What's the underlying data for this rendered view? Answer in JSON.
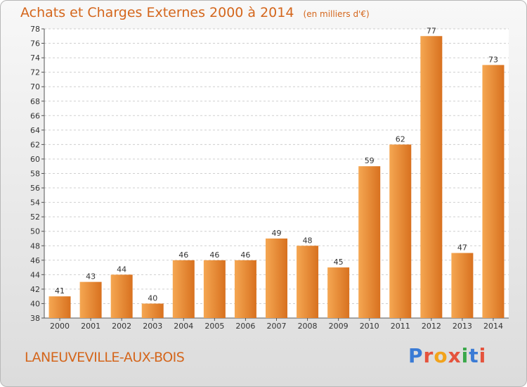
{
  "header": {
    "title": "Achats et Charges Externes 2000 à 2014",
    "subtitle": "(en milliers d'€)"
  },
  "footer": {
    "location": "LANEUVEVILLE-AUX-BOIS",
    "brand": "Proxiti",
    "brand_colors": [
      "#3a7bd5",
      "#e5533d",
      "#f2a31b",
      "#e5533d",
      "#3aa84a",
      "#3a7bd5",
      "#e5533d"
    ]
  },
  "colors": {
    "bar_light": "#f5a752",
    "bar_dark": "#d8711f",
    "grid": "#cfcfcf",
    "plot_bg": "#ffffff",
    "title": "#d4661c"
  },
  "chart_data": {
    "type": "bar",
    "title": "Achats et Charges Externes 2000 à 2014",
    "subtitle": "(en milliers d'€)",
    "xlabel": "",
    "ylabel": "",
    "categories": [
      "2000",
      "2001",
      "2002",
      "2003",
      "2004",
      "2005",
      "2006",
      "2007",
      "2008",
      "2009",
      "2010",
      "2011",
      "2012",
      "2013",
      "2014"
    ],
    "values": [
      41,
      43,
      44,
      40,
      46,
      46,
      46,
      49,
      48,
      45,
      59,
      62,
      77,
      47,
      73
    ],
    "ylim": [
      38,
      78
    ],
    "yticks": [
      38,
      40,
      42,
      44,
      46,
      48,
      50,
      52,
      54,
      56,
      58,
      60,
      62,
      64,
      66,
      68,
      70,
      72,
      74,
      76,
      78
    ],
    "grid": true,
    "legend": "none"
  }
}
